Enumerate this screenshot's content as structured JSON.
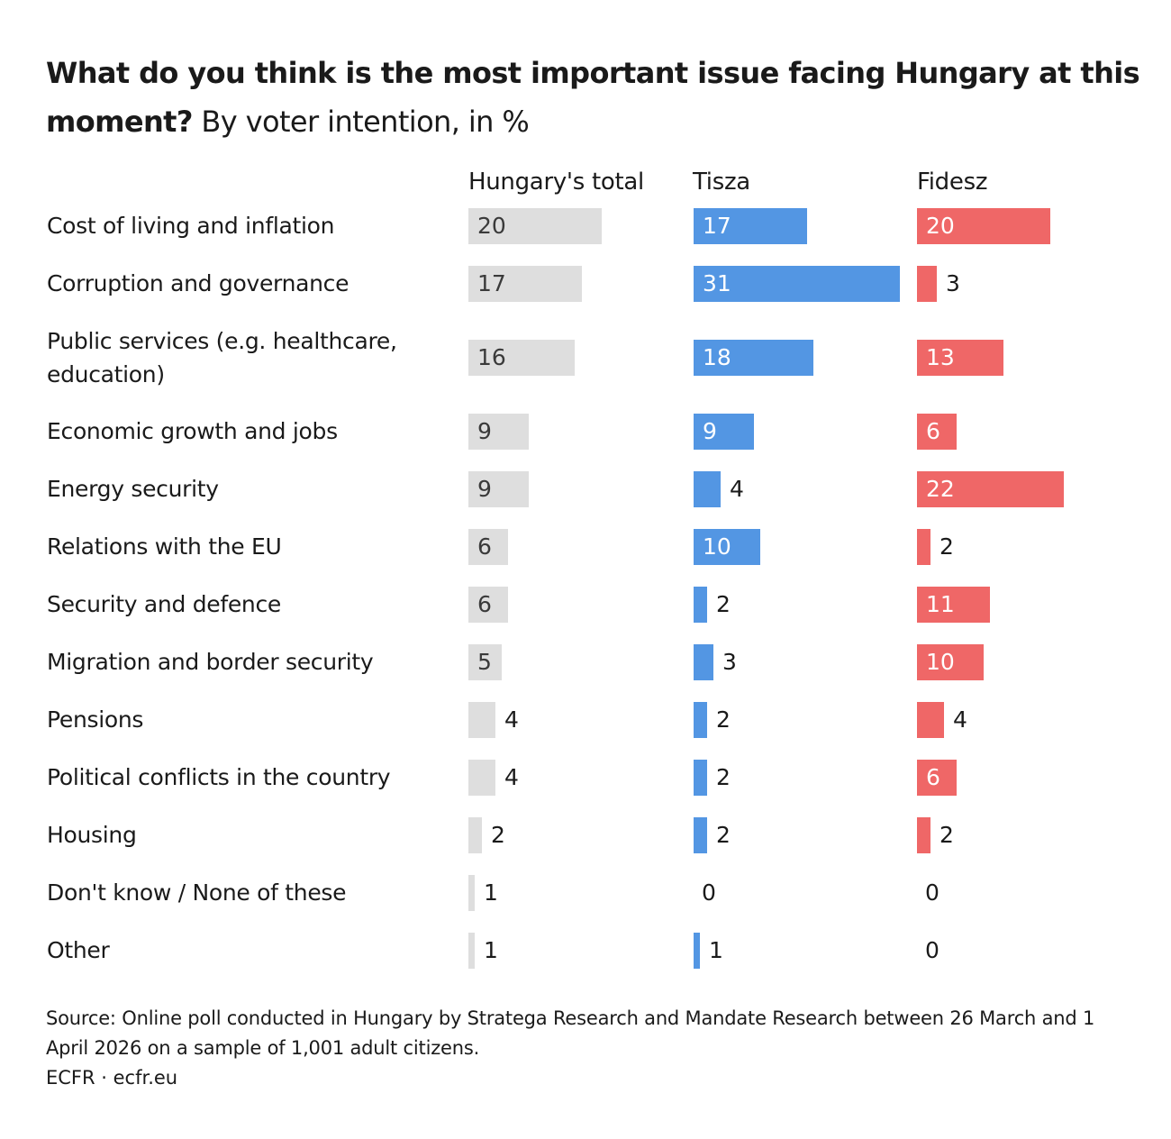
{
  "chart_data": {
    "type": "bar",
    "title": "What do you think is the most important issue facing Hungary at this moment?",
    "subtitle": "By voter intention, in %",
    "categories": [
      "Cost of living and inflation",
      "Corruption and governance",
      "Public services (e.g. healthcare, education)",
      "Economic growth and jobs",
      "Energy security",
      "Relations with the EU",
      "Security and defence",
      "Migration and border security",
      "Pensions",
      "Political conflicts in the country",
      "Housing",
      "Don't know / None of these",
      "Other"
    ],
    "series": [
      {
        "name": "Hungary's total",
        "color": "#dedede",
        "values": [
          20,
          17,
          16,
          9,
          9,
          6,
          6,
          5,
          4,
          4,
          2,
          1,
          1
        ]
      },
      {
        "name": "Tisza",
        "color": "#5396e3",
        "values": [
          17,
          31,
          18,
          9,
          4,
          10,
          2,
          3,
          2,
          2,
          2,
          0,
          1
        ]
      },
      {
        "name": "Fidesz",
        "color": "#ef6767",
        "values": [
          20,
          3,
          13,
          6,
          22,
          2,
          11,
          10,
          4,
          6,
          2,
          0,
          0
        ]
      }
    ],
    "xlabel": "",
    "ylabel": "",
    "grid": false,
    "legend": "column headers"
  },
  "footer": {
    "source": "Source: Online poll conducted in Hungary by Stratega Research and Mandate Research between 26 March and 1 April 2026 on a sample of 1,001 adult citizens.",
    "credit": "ECFR · ecfr.eu"
  }
}
